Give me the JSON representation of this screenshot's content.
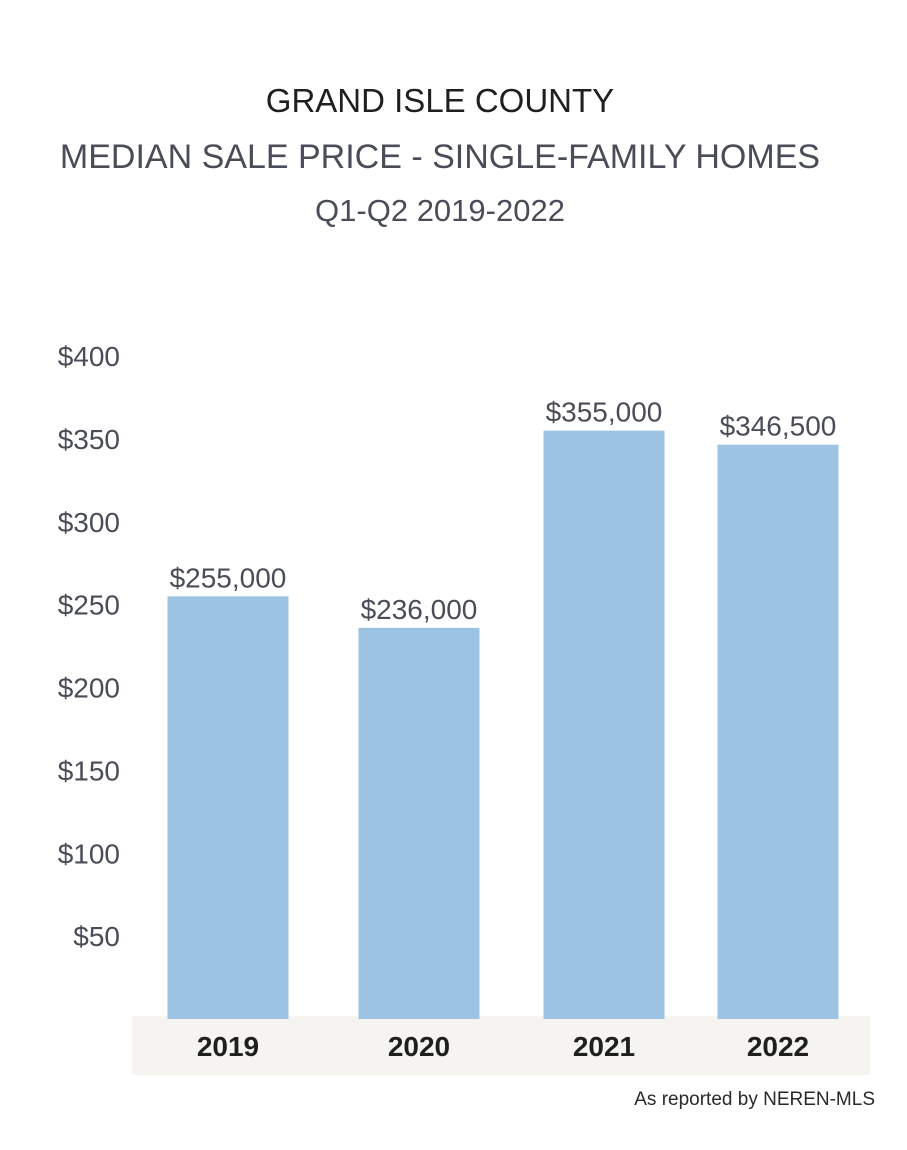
{
  "header": {
    "title": "GRAND ISLE COUNTY",
    "subtitle": "MEDIAN SALE PRICE - SINGLE-FAMILY HOMES",
    "period": "Q1-Q2 2019-2022"
  },
  "source_note": "As reported by NEREN-MLS",
  "colors": {
    "bar": "#9dc3e3",
    "axis_band": "#f5f4f0"
  },
  "chart_data": {
    "type": "bar",
    "categories": [
      "2019",
      "2020",
      "2021",
      "2022"
    ],
    "values": [
      255000,
      236000,
      355000,
      346500
    ],
    "data_labels": [
      "$255,000",
      "$236,000",
      "$355,000",
      "$346,500"
    ],
    "ylim": [
      0,
      400000
    ],
    "yticks": [
      50000,
      100000,
      150000,
      200000,
      250000,
      300000,
      350000,
      400000
    ],
    "ytick_labels": [
      "$50",
      "$100",
      "$150",
      "$200",
      "$250",
      "$300",
      "$350",
      "$400"
    ],
    "grid": false
  }
}
